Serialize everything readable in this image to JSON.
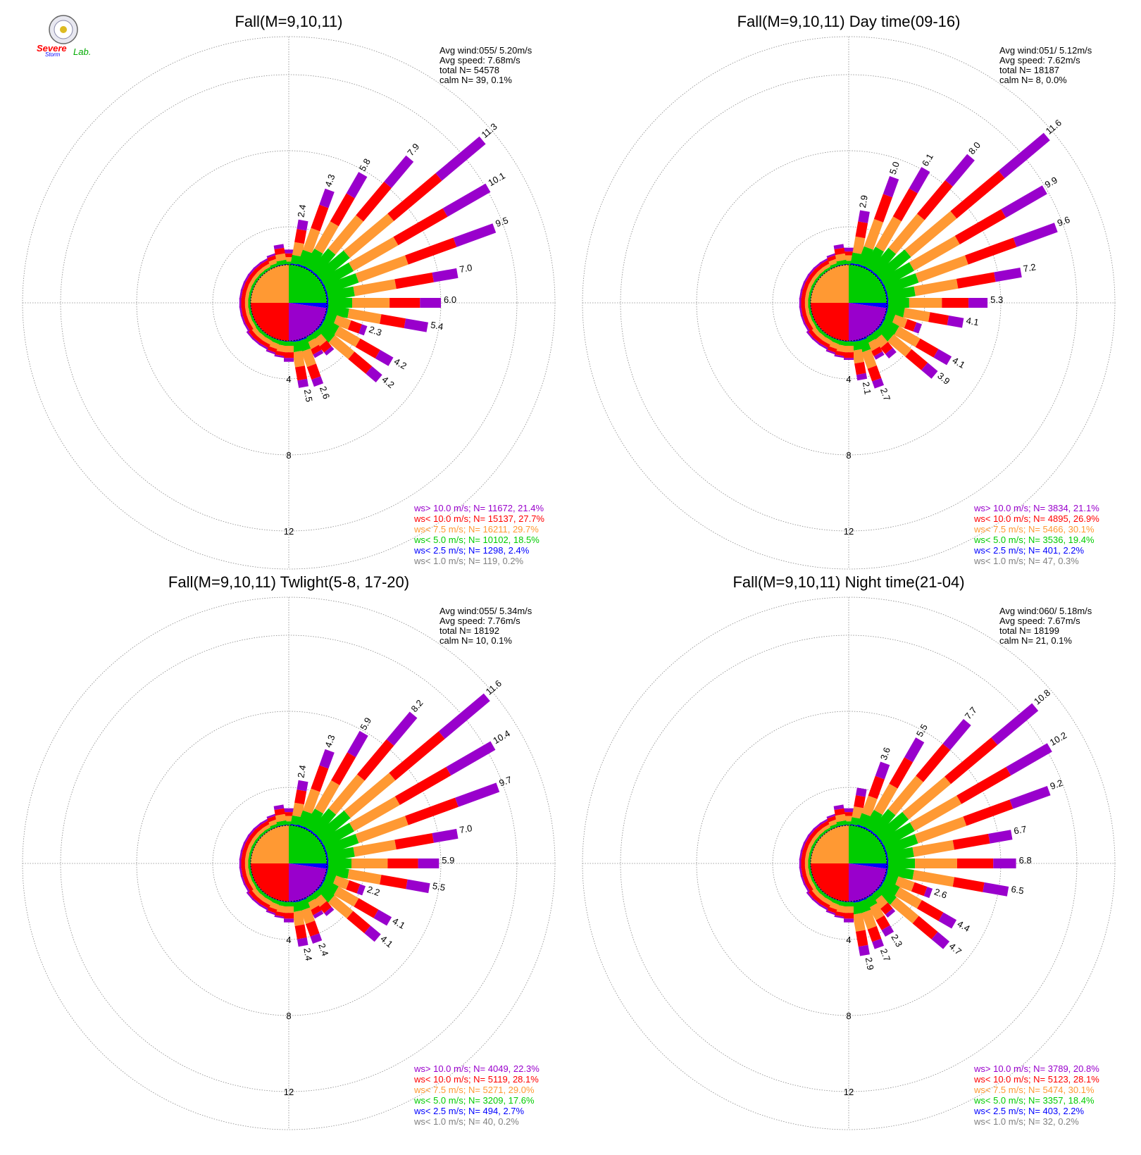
{
  "logo": {
    "line1": "Severe",
    "line2": "Storm",
    "line3": "Lab."
  },
  "colors": {
    "purple": "#9900cc",
    "red": "#ff0000",
    "orange": "#ff9933",
    "green": "#00cc00",
    "blue": "#0000ff",
    "gray": "#808080",
    "grid": "#888888"
  },
  "panels": [
    {
      "title": "Fall(M=9,10,11)",
      "info": [
        "Avg wind:055/ 5.20m/s",
        "Avg speed: 7.68m/s",
        "total N=      54578",
        "calm N=     39,   0.1%"
      ],
      "ring_labels": [
        "4",
        "8",
        "12"
      ],
      "legend": [
        {
          "text": "ws> 10.0 m/s; N= 11672, 21.4%",
          "color": "purple"
        },
        {
          "text": "ws< 10.0 m/s; N= 15137, 27.7%",
          "color": "red"
        },
        {
          "text": "ws<  7.5 m/s; N= 16211, 29.7%",
          "color": "orange"
        },
        {
          "text": "ws<  5.0 m/s; N= 10102, 18.5%",
          "color": "green"
        },
        {
          "text": "ws<  2.5 m/s; N=  1298,  2.4%",
          "color": "blue"
        },
        {
          "text": "ws<  1.0 m/s; N=   119,  0.2%",
          "color": "gray"
        }
      ],
      "bar_labels": [
        {
          "deg": 10,
          "text": "2.4"
        },
        {
          "deg": 20,
          "text": "4.3"
        },
        {
          "deg": 30,
          "text": "5.8"
        },
        {
          "deg": 40,
          "text": "7.9"
        },
        {
          "deg": 50,
          "text": "11.3"
        },
        {
          "deg": 60,
          "text": "10.1"
        },
        {
          "deg": 70,
          "text": "9.5"
        },
        {
          "deg": 80,
          "text": "7.0"
        },
        {
          "deg": 90,
          "text": "6.0"
        },
        {
          "deg": 100,
          "text": "5.4"
        },
        {
          "deg": 110,
          "text": "2.3"
        },
        {
          "deg": 120,
          "text": "4.2"
        },
        {
          "deg": 130,
          "text": "4.2"
        },
        {
          "deg": 160,
          "text": "2.6"
        },
        {
          "deg": 170,
          "text": "2.5"
        }
      ]
    },
    {
      "title": "Fall(M=9,10,11) Day time(09-16)",
      "info": [
        "Avg wind:051/ 5.12m/s",
        "Avg speed: 7.62m/s",
        "total N=      18187",
        "calm N=      8,   0.0%"
      ],
      "ring_labels": [
        "4",
        "8",
        "12"
      ],
      "legend": [
        {
          "text": "ws> 10.0 m/s; N=  3834, 21.1%",
          "color": "purple"
        },
        {
          "text": "ws< 10.0 m/s; N=  4895, 26.9%",
          "color": "red"
        },
        {
          "text": "ws<  7.5 m/s; N=  5466, 30.1%",
          "color": "orange"
        },
        {
          "text": "ws<  5.0 m/s; N=  3536, 19.4%",
          "color": "green"
        },
        {
          "text": "ws<  2.5 m/s; N=   401,  2.2%",
          "color": "blue"
        },
        {
          "text": "ws<  1.0 m/s; N=    47,  0.3%",
          "color": "gray"
        }
      ],
      "bar_labels": [
        {
          "deg": 10,
          "text": "2.9"
        },
        {
          "deg": 20,
          "text": "5.0"
        },
        {
          "deg": 30,
          "text": "6.1"
        },
        {
          "deg": 40,
          "text": "8.0"
        },
        {
          "deg": 50,
          "text": "11.6"
        },
        {
          "deg": 60,
          "text": "9.9"
        },
        {
          "deg": 70,
          "text": "9.6"
        },
        {
          "deg": 80,
          "text": "7.2"
        },
        {
          "deg": 90,
          "text": "5.3"
        },
        {
          "deg": 100,
          "text": "4.1"
        },
        {
          "deg": 120,
          "text": "4.1"
        },
        {
          "deg": 130,
          "text": "3.9"
        },
        {
          "deg": 160,
          "text": "2.7"
        },
        {
          "deg": 170,
          "text": "2.1"
        }
      ]
    },
    {
      "title": "Fall(M=9,10,11) Twlight(5-8, 17-20)",
      "info": [
        "Avg wind:055/ 5.34m/s",
        "Avg speed: 7.76m/s",
        "total N=      18192",
        "calm N=     10,   0.1%"
      ],
      "ring_labels": [
        "4",
        "8",
        "12"
      ],
      "legend": [
        {
          "text": "ws> 10.0 m/s; N=  4049, 22.3%",
          "color": "purple"
        },
        {
          "text": "ws< 10.0 m/s; N=  5119, 28.1%",
          "color": "red"
        },
        {
          "text": "ws<  7.5 m/s; N=  5271, 29.0%",
          "color": "orange"
        },
        {
          "text": "ws<  5.0 m/s; N=  3209, 17.6%",
          "color": "green"
        },
        {
          "text": "ws<  2.5 m/s; N=   494,  2.7%",
          "color": "blue"
        },
        {
          "text": "ws<  1.0 m/s; N=    40,  0.2%",
          "color": "gray"
        }
      ],
      "bar_labels": [
        {
          "deg": 10,
          "text": "2.4"
        },
        {
          "deg": 20,
          "text": "4.3"
        },
        {
          "deg": 30,
          "text": "5.9"
        },
        {
          "deg": 40,
          "text": "8.2"
        },
        {
          "deg": 50,
          "text": "11.6"
        },
        {
          "deg": 60,
          "text": "10.4"
        },
        {
          "deg": 70,
          "text": "9.7"
        },
        {
          "deg": 80,
          "text": "7.0"
        },
        {
          "deg": 90,
          "text": "5.9"
        },
        {
          "deg": 100,
          "text": "5.5"
        },
        {
          "deg": 110,
          "text": "2.2"
        },
        {
          "deg": 120,
          "text": "4.1"
        },
        {
          "deg": 130,
          "text": "4.1"
        },
        {
          "deg": 160,
          "text": "2.4"
        },
        {
          "deg": 170,
          "text": "2.4"
        }
      ]
    },
    {
      "title": "Fall(M=9,10,11) Night time(21-04)",
      "info": [
        "Avg wind:060/ 5.18m/s",
        "Avg speed: 7.67m/s",
        "total N=      18199",
        "calm N=     21,   0.1%"
      ],
      "ring_labels": [
        "4",
        "8",
        "12"
      ],
      "legend": [
        {
          "text": "ws> 10.0 m/s; N=  3789, 20.8%",
          "color": "purple"
        },
        {
          "text": "ws< 10.0 m/s; N=  5123, 28.1%",
          "color": "red"
        },
        {
          "text": "ws<  7.5 m/s; N=  5474, 30.1%",
          "color": "orange"
        },
        {
          "text": "ws<  5.0 m/s; N=  3357, 18.4%",
          "color": "green"
        },
        {
          "text": "ws<  2.5 m/s; N=   403,  2.2%",
          "color": "blue"
        },
        {
          "text": "ws<  1.0 m/s; N=    32,  0.2%",
          "color": "gray"
        }
      ],
      "bar_labels": [
        {
          "deg": 20,
          "text": "3.6"
        },
        {
          "deg": 30,
          "text": "5.5"
        },
        {
          "deg": 40,
          "text": "7.7"
        },
        {
          "deg": 50,
          "text": "10.8"
        },
        {
          "deg": 60,
          "text": "10.2"
        },
        {
          "deg": 70,
          "text": "9.2"
        },
        {
          "deg": 80,
          "text": "6.7"
        },
        {
          "deg": 90,
          "text": "6.8"
        },
        {
          "deg": 100,
          "text": "6.5"
        },
        {
          "deg": 110,
          "text": "2.6"
        },
        {
          "deg": 120,
          "text": "4.4"
        },
        {
          "deg": 130,
          "text": "4.7"
        },
        {
          "deg": 150,
          "text": "2.3"
        },
        {
          "deg": 160,
          "text": "2.7"
        },
        {
          "deg": 170,
          "text": "2.9"
        }
      ]
    }
  ],
  "chart_data": [
    {
      "type": "wind-rose",
      "title": "Fall(M=9,10,11)",
      "rlim": [
        0,
        14
      ],
      "ring_ticks": [
        4,
        8,
        12
      ],
      "speed_bins": [
        "ws<  1.0 m/s",
        "ws<  2.5 m/s",
        "ws<  5.0 m/s",
        "ws<  7.5 m/s",
        "ws< 10.0 m/s",
        "ws> 10.0 m/s"
      ],
      "directions_deg": [
        0,
        10,
        20,
        30,
        40,
        50,
        60,
        70,
        80,
        90,
        100,
        110,
        120,
        130,
        140,
        150,
        160,
        170,
        180,
        190,
        200,
        210,
        220,
        230,
        240,
        250,
        260,
        270,
        280,
        290,
        300,
        310,
        320,
        330,
        340,
        350
      ],
      "totals_pct": [
        0.8,
        2.4,
        4.3,
        5.8,
        7.9,
        11.3,
        10.1,
        9.5,
        7.0,
        6.0,
        5.4,
        2.3,
        4.2,
        4.2,
        1.4,
        1.2,
        2.6,
        2.5,
        1.1,
        0.9,
        0.8,
        0.7,
        0.7,
        0.7,
        0.6,
        0.6,
        0.6,
        0.6,
        0.6,
        0.6,
        0.6,
        0.6,
        0.6,
        0.6,
        0.7,
        1.1
      ],
      "purple_pct": [
        0.2,
        0.5,
        0.9,
        1.3,
        1.8,
        3.0,
        2.6,
        2.2,
        1.3,
        1.1,
        1.2,
        0.3,
        0.8,
        0.7,
        0.2,
        0.2,
        0.4,
        0.4,
        0.2,
        0.1,
        0.1,
        0.1,
        0.1,
        0.1,
        0.1,
        0.1,
        0.1,
        0.1,
        0.1,
        0.1,
        0.1,
        0.1,
        0.1,
        0.1,
        0.1,
        0.2
      ],
      "red_pct": [
        0.2,
        0.7,
        1.3,
        1.7,
        2.3,
        3.3,
        3.0,
        2.7,
        2.0,
        1.6,
        1.3,
        0.6,
        1.2,
        1.2,
        0.4,
        0.3,
        0.7,
        0.7,
        0.3,
        0.2,
        0.2,
        0.2,
        0.2,
        0.2,
        0.2,
        0.2,
        0.2,
        0.2,
        0.2,
        0.2,
        0.2,
        0.2,
        0.2,
        0.2,
        0.2,
        0.3
      ]
    },
    {
      "type": "wind-rose",
      "title": "Fall(M=9,10,11) Day time(09-16)",
      "rlim": [
        0,
        14
      ],
      "ring_ticks": [
        4,
        8,
        12
      ],
      "directions_deg": [
        0,
        10,
        20,
        30,
        40,
        50,
        60,
        70,
        80,
        90,
        100,
        110,
        120,
        130,
        140,
        150,
        160,
        170,
        180,
        190,
        200,
        210,
        220,
        230,
        240,
        250,
        260,
        270,
        280,
        290,
        300,
        310,
        320,
        330,
        340,
        350
      ],
      "totals_pct": [
        0.9,
        2.9,
        5.0,
        6.1,
        8.0,
        11.6,
        9.9,
        9.6,
        7.2,
        5.3,
        4.1,
        2.0,
        4.1,
        3.9,
        1.6,
        1.3,
        2.7,
        2.1,
        1.0,
        0.9,
        0.8,
        0.7,
        0.7,
        0.7,
        0.6,
        0.6,
        0.6,
        0.6,
        0.6,
        0.6,
        0.6,
        0.6,
        0.6,
        0.6,
        0.7,
        1.1
      ],
      "purple_pct": [
        0.2,
        0.6,
        1.0,
        1.3,
        1.8,
        3.1,
        2.5,
        2.3,
        1.4,
        1.0,
        0.8,
        0.3,
        0.8,
        0.7,
        0.3,
        0.2,
        0.4,
        0.3,
        0.1,
        0.1,
        0.1,
        0.1,
        0.1,
        0.1,
        0.1,
        0.1,
        0.1,
        0.1,
        0.1,
        0.1,
        0.1,
        0.1,
        0.1,
        0.1,
        0.1,
        0.2
      ],
      "red_pct": [
        0.2,
        0.8,
        1.4,
        1.7,
        2.3,
        3.3,
        2.8,
        2.7,
        2.0,
        1.4,
        1.0,
        0.5,
        1.1,
        1.1,
        0.4,
        0.3,
        0.7,
        0.6,
        0.3,
        0.2,
        0.2,
        0.2,
        0.2,
        0.2,
        0.2,
        0.2,
        0.2,
        0.2,
        0.2,
        0.2,
        0.2,
        0.2,
        0.2,
        0.2,
        0.2,
        0.3
      ]
    },
    {
      "type": "wind-rose",
      "title": "Fall(M=9,10,11) Twlight(5-8, 17-20)",
      "rlim": [
        0,
        14
      ],
      "ring_ticks": [
        4,
        8,
        12
      ],
      "directions_deg": [
        0,
        10,
        20,
        30,
        40,
        50,
        60,
        70,
        80,
        90,
        100,
        110,
        120,
        130,
        140,
        150,
        160,
        170,
        180,
        190,
        200,
        210,
        220,
        230,
        240,
        250,
        260,
        270,
        280,
        290,
        300,
        310,
        320,
        330,
        340,
        350
      ],
      "totals_pct": [
        0.9,
        2.4,
        4.3,
        5.9,
        8.2,
        11.6,
        10.4,
        9.7,
        7.0,
        5.9,
        5.5,
        2.2,
        4.1,
        4.1,
        1.4,
        1.2,
        2.4,
        2.4,
        1.1,
        0.9,
        0.8,
        0.7,
        0.7,
        0.7,
        0.6,
        0.6,
        0.6,
        0.6,
        0.6,
        0.6,
        0.6,
        0.6,
        0.6,
        0.6,
        0.7,
        1.1
      ],
      "purple_pct": [
        0.2,
        0.5,
        0.9,
        1.3,
        1.9,
        3.1,
        2.7,
        2.3,
        1.3,
        1.1,
        1.2,
        0.3,
        0.8,
        0.7,
        0.2,
        0.2,
        0.4,
        0.4,
        0.2,
        0.1,
        0.1,
        0.1,
        0.1,
        0.1,
        0.1,
        0.1,
        0.1,
        0.1,
        0.1,
        0.1,
        0.1,
        0.1,
        0.1,
        0.1,
        0.1,
        0.2
      ],
      "red_pct": [
        0.2,
        0.7,
        1.3,
        1.7,
        2.4,
        3.4,
        3.1,
        2.8,
        2.0,
        1.6,
        1.4,
        0.6,
        1.2,
        1.2,
        0.4,
        0.3,
        0.7,
        0.7,
        0.3,
        0.2,
        0.2,
        0.2,
        0.2,
        0.2,
        0.2,
        0.2,
        0.2,
        0.2,
        0.2,
        0.2,
        0.2,
        0.2,
        0.2,
        0.2,
        0.2,
        0.3
      ]
    },
    {
      "type": "wind-rose",
      "title": "Fall(M=9,10,11) Night time(21-04)",
      "rlim": [
        0,
        14
      ],
      "ring_ticks": [
        4,
        8,
        12
      ],
      "directions_deg": [
        0,
        10,
        20,
        30,
        40,
        50,
        60,
        70,
        80,
        90,
        100,
        110,
        120,
        130,
        140,
        150,
        160,
        170,
        180,
        190,
        200,
        210,
        220,
        230,
        240,
        250,
        260,
        270,
        280,
        290,
        300,
        310,
        320,
        330,
        340,
        350
      ],
      "totals_pct": [
        0.9,
        2.0,
        3.6,
        5.5,
        7.7,
        10.8,
        10.2,
        9.2,
        6.7,
        6.8,
        6.5,
        2.6,
        4.4,
        4.7,
        1.5,
        2.3,
        2.7,
        2.9,
        1.1,
        0.9,
        0.8,
        0.7,
        0.7,
        0.7,
        0.6,
        0.6,
        0.6,
        0.6,
        0.6,
        0.6,
        0.6,
        0.6,
        0.6,
        0.6,
        0.7,
        1.1
      ],
      "purple_pct": [
        0.2,
        0.4,
        0.8,
        1.2,
        1.7,
        2.8,
        2.5,
        2.1,
        1.2,
        1.2,
        1.3,
        0.3,
        0.8,
        0.8,
        0.2,
        0.4,
        0.4,
        0.5,
        0.2,
        0.1,
        0.1,
        0.1,
        0.1,
        0.1,
        0.1,
        0.1,
        0.1,
        0.1,
        0.1,
        0.1,
        0.1,
        0.1,
        0.1,
        0.1,
        0.1,
        0.2
      ],
      "red_pct": [
        0.2,
        0.6,
        1.1,
        1.6,
        2.2,
        3.2,
        3.0,
        2.6,
        1.9,
        1.9,
        1.6,
        0.7,
        1.3,
        1.3,
        0.4,
        0.6,
        0.7,
        0.8,
        0.3,
        0.2,
        0.2,
        0.2,
        0.2,
        0.2,
        0.2,
        0.2,
        0.2,
        0.2,
        0.2,
        0.2,
        0.2,
        0.2,
        0.2,
        0.2,
        0.2,
        0.3
      ]
    }
  ]
}
